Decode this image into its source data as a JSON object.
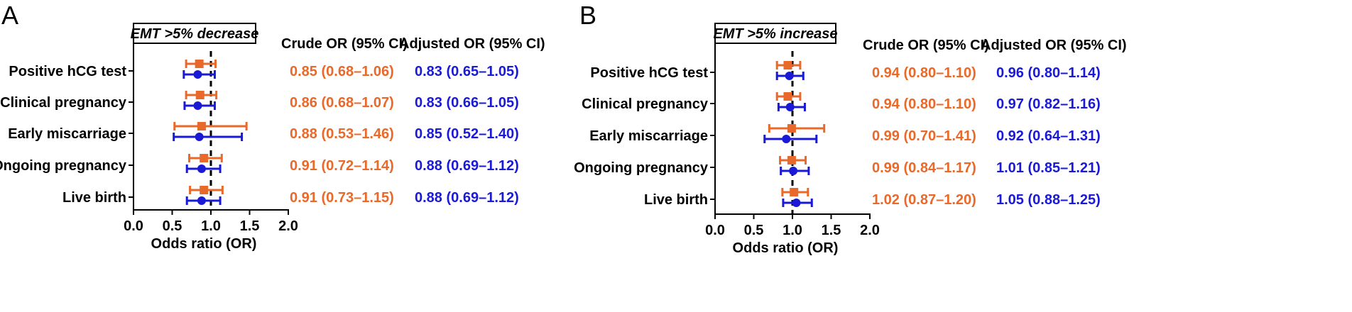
{
  "chart_data": [
    {
      "type": "forest",
      "panel_label": "A",
      "box_title": "EMT >5% decrease",
      "column_headers": {
        "crude": "Crude OR (95% CI)",
        "adjusted": "Adjusted OR (95% CI)"
      },
      "xlabel": "Odds ratio (OR)",
      "xlim": [
        0.0,
        2.0
      ],
      "xticks": [
        "0.0",
        "0.5",
        "1.0",
        "1.5",
        "2.0"
      ],
      "reference_line": 1.0,
      "categories": [
        "Positive hCG test",
        "Clinical pregnancy",
        "Early miscarriage",
        "Ongoing pregnancy",
        "Live birth"
      ],
      "series": [
        {
          "key": "crude",
          "color": "#e8692a",
          "marker": "square",
          "points": [
            {
              "or": 0.85,
              "lo": 0.68,
              "hi": 1.06,
              "text": "0.85 (0.68–1.06)"
            },
            {
              "or": 0.86,
              "lo": 0.68,
              "hi": 1.07,
              "text": "0.86 (0.68–1.07)"
            },
            {
              "or": 0.88,
              "lo": 0.53,
              "hi": 1.46,
              "text": "0.88 (0.53–1.46)"
            },
            {
              "or": 0.91,
              "lo": 0.72,
              "hi": 1.14,
              "text": "0.91 (0.72–1.14)"
            },
            {
              "or": 0.91,
              "lo": 0.73,
              "hi": 1.15,
              "text": "0.91 (0.73–1.15)"
            }
          ]
        },
        {
          "key": "adjusted",
          "color": "#1a1ad6",
          "marker": "circle",
          "points": [
            {
              "or": 0.83,
              "lo": 0.65,
              "hi": 1.05,
              "text": "0.83 (0.65–1.05)"
            },
            {
              "or": 0.83,
              "lo": 0.66,
              "hi": 1.05,
              "text": "0.83 (0.66–1.05)"
            },
            {
              "or": 0.85,
              "lo": 0.52,
              "hi": 1.4,
              "text": "0.85 (0.52–1.40)"
            },
            {
              "or": 0.88,
              "lo": 0.69,
              "hi": 1.12,
              "text": "0.88 (0.69–1.12)"
            },
            {
              "or": 0.88,
              "lo": 0.69,
              "hi": 1.12,
              "text": "0.88 (0.69–1.12)"
            }
          ]
        }
      ]
    },
    {
      "type": "forest",
      "panel_label": "B",
      "box_title": "EMT >5% increase",
      "column_headers": {
        "crude": "Crude OR (95% CI)",
        "adjusted": "Adjusted OR (95% CI)"
      },
      "xlabel": "Odds ratio (OR)",
      "xlim": [
        0.0,
        2.0
      ],
      "xticks": [
        "0.0",
        "0.5",
        "1.0",
        "1.5",
        "2.0"
      ],
      "reference_line": 1.0,
      "categories": [
        "Positive hCG test",
        "Clinical pregnancy",
        "Early miscarriage",
        "Ongoing pregnancy",
        "Live birth"
      ],
      "series": [
        {
          "key": "crude",
          "color": "#e8692a",
          "marker": "square",
          "points": [
            {
              "or": 0.94,
              "lo": 0.8,
              "hi": 1.1,
              "text": "0.94 (0.80–1.10)"
            },
            {
              "or": 0.94,
              "lo": 0.8,
              "hi": 1.1,
              "text": "0.94 (0.80–1.10)"
            },
            {
              "or": 0.99,
              "lo": 0.7,
              "hi": 1.41,
              "text": "0.99 (0.70–1.41)"
            },
            {
              "or": 0.99,
              "lo": 0.84,
              "hi": 1.17,
              "text": "0.99 (0.84–1.17)"
            },
            {
              "or": 1.02,
              "lo": 0.87,
              "hi": 1.2,
              "text": "1.02 (0.87–1.20)"
            }
          ]
        },
        {
          "key": "adjusted",
          "color": "#1a1ad6",
          "marker": "circle",
          "points": [
            {
              "or": 0.96,
              "lo": 0.8,
              "hi": 1.14,
              "text": "0.96 (0.80–1.14)"
            },
            {
              "or": 0.97,
              "lo": 0.82,
              "hi": 1.16,
              "text": "0.97 (0.82–1.16)"
            },
            {
              "or": 0.92,
              "lo": 0.64,
              "hi": 1.31,
              "text": "0.92 (0.64–1.31)"
            },
            {
              "or": 1.01,
              "lo": 0.85,
              "hi": 1.21,
              "text": "1.01 (0.85–1.21)"
            },
            {
              "or": 1.05,
              "lo": 0.88,
              "hi": 1.25,
              "text": "1.05 (0.88–1.25)"
            }
          ]
        }
      ]
    }
  ]
}
